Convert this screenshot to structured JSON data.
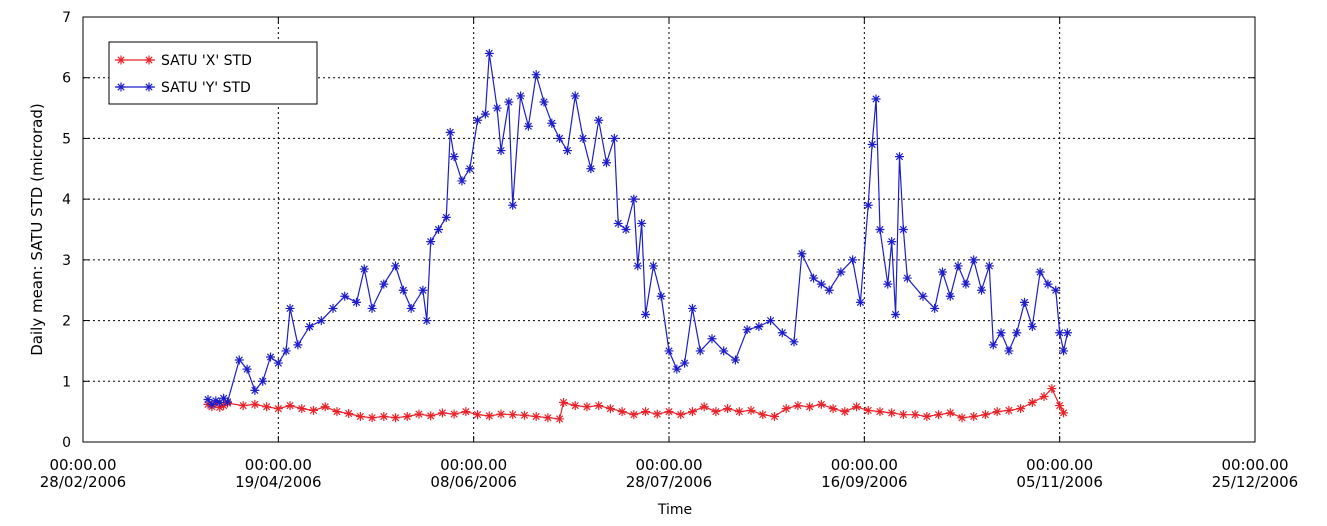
{
  "chart_data": {
    "type": "line",
    "title": "",
    "xlabel": "Time",
    "ylabel": "Daily mean: SATU STD (microrad)",
    "ylim": [
      0,
      7
    ],
    "xlim": [
      "2006-02-28",
      "2006-12-25"
    ],
    "yticks": [
      "0",
      "1",
      "2",
      "3",
      "4",
      "5",
      "6",
      "7"
    ],
    "xticks": [
      {
        "date": "2006-02-28",
        "time": "00:00.00",
        "label": "28/02/2006"
      },
      {
        "date": "2006-04-19",
        "time": "00:00.00",
        "label": "19/04/2006"
      },
      {
        "date": "2006-06-08",
        "time": "00:00.00",
        "label": "08/06/2006"
      },
      {
        "date": "2006-07-28",
        "time": "00:00.00",
        "label": "28/07/2006"
      },
      {
        "date": "2006-09-16",
        "time": "00:00.00",
        "label": "16/09/2006"
      },
      {
        "date": "2006-11-05",
        "time": "00:00.00",
        "label": "05/11/2006"
      },
      {
        "date": "2006-12-25",
        "time": "00:00.00",
        "label": "25/12/2006"
      }
    ],
    "grid": true,
    "legend_position": "top-left",
    "series": [
      {
        "name": "SATU 'X' STD",
        "color": "#e8232a",
        "marker": "asterisk",
        "points": [
          [
            "2006-04-01",
            0.62
          ],
          [
            "2006-04-02",
            0.58
          ],
          [
            "2006-04-03",
            0.63
          ],
          [
            "2006-04-04",
            0.57
          ],
          [
            "2006-04-05",
            0.6
          ],
          [
            "2006-04-06",
            0.64
          ],
          [
            "2006-04-10",
            0.6
          ],
          [
            "2006-04-13",
            0.62
          ],
          [
            "2006-04-16",
            0.58
          ],
          [
            "2006-04-19",
            0.55
          ],
          [
            "2006-04-22",
            0.6
          ],
          [
            "2006-04-25",
            0.55
          ],
          [
            "2006-04-28",
            0.52
          ],
          [
            "2006-05-01",
            0.58
          ],
          [
            "2006-05-04",
            0.5
          ],
          [
            "2006-05-07",
            0.47
          ],
          [
            "2006-05-10",
            0.42
          ],
          [
            "2006-05-13",
            0.4
          ],
          [
            "2006-05-16",
            0.42
          ],
          [
            "2006-05-19",
            0.4
          ],
          [
            "2006-05-22",
            0.42
          ],
          [
            "2006-05-25",
            0.46
          ],
          [
            "2006-05-28",
            0.43
          ],
          [
            "2006-05-31",
            0.48
          ],
          [
            "2006-06-03",
            0.46
          ],
          [
            "2006-06-06",
            0.5
          ],
          [
            "2006-06-09",
            0.45
          ],
          [
            "2006-06-12",
            0.43
          ],
          [
            "2006-06-15",
            0.46
          ],
          [
            "2006-06-18",
            0.45
          ],
          [
            "2006-06-21",
            0.44
          ],
          [
            "2006-06-24",
            0.42
          ],
          [
            "2006-06-27",
            0.4
          ],
          [
            "2006-06-30",
            0.38
          ],
          [
            "2006-07-01",
            0.65
          ],
          [
            "2006-07-04",
            0.6
          ],
          [
            "2006-07-07",
            0.58
          ],
          [
            "2006-07-10",
            0.6
          ],
          [
            "2006-07-13",
            0.55
          ],
          [
            "2006-07-16",
            0.5
          ],
          [
            "2006-07-19",
            0.45
          ],
          [
            "2006-07-22",
            0.5
          ],
          [
            "2006-07-25",
            0.46
          ],
          [
            "2006-07-28",
            0.5
          ],
          [
            "2006-07-31",
            0.45
          ],
          [
            "2006-08-03",
            0.5
          ],
          [
            "2006-08-06",
            0.58
          ],
          [
            "2006-08-09",
            0.5
          ],
          [
            "2006-08-12",
            0.55
          ],
          [
            "2006-08-15",
            0.5
          ],
          [
            "2006-08-18",
            0.52
          ],
          [
            "2006-08-21",
            0.45
          ],
          [
            "2006-08-24",
            0.42
          ],
          [
            "2006-08-27",
            0.55
          ],
          [
            "2006-08-30",
            0.6
          ],
          [
            "2006-09-02",
            0.58
          ],
          [
            "2006-09-05",
            0.62
          ],
          [
            "2006-09-08",
            0.55
          ],
          [
            "2006-09-11",
            0.5
          ],
          [
            "2006-09-14",
            0.58
          ],
          [
            "2006-09-17",
            0.52
          ],
          [
            "2006-09-20",
            0.5
          ],
          [
            "2006-09-23",
            0.48
          ],
          [
            "2006-09-26",
            0.45
          ],
          [
            "2006-09-29",
            0.45
          ],
          [
            "2006-10-02",
            0.42
          ],
          [
            "2006-10-05",
            0.45
          ],
          [
            "2006-10-08",
            0.48
          ],
          [
            "2006-10-11",
            0.4
          ],
          [
            "2006-10-14",
            0.42
          ],
          [
            "2006-10-17",
            0.45
          ],
          [
            "2006-10-20",
            0.5
          ],
          [
            "2006-10-23",
            0.52
          ],
          [
            "2006-10-26",
            0.55
          ],
          [
            "2006-10-29",
            0.65
          ],
          [
            "2006-11-01",
            0.75
          ],
          [
            "2006-11-03",
            0.88
          ],
          [
            "2006-11-05",
            0.6
          ],
          [
            "2006-11-06",
            0.48
          ]
        ]
      },
      {
        "name": "SATU 'Y' STD",
        "color": "#1e1ec8",
        "marker": "asterisk",
        "points": [
          [
            "2006-04-01",
            0.7
          ],
          [
            "2006-04-02",
            0.62
          ],
          [
            "2006-04-03",
            0.68
          ],
          [
            "2006-04-04",
            0.65
          ],
          [
            "2006-04-05",
            0.72
          ],
          [
            "2006-04-06",
            0.66
          ],
          [
            "2006-04-09",
            1.35
          ],
          [
            "2006-04-11",
            1.2
          ],
          [
            "2006-04-13",
            0.85
          ],
          [
            "2006-04-15",
            1.0
          ],
          [
            "2006-04-17",
            1.4
          ],
          [
            "2006-04-19",
            1.3
          ],
          [
            "2006-04-21",
            1.5
          ],
          [
            "2006-04-22",
            2.2
          ],
          [
            "2006-04-24",
            1.6
          ],
          [
            "2006-04-27",
            1.9
          ],
          [
            "2006-04-30",
            2.0
          ],
          [
            "2006-05-03",
            2.2
          ],
          [
            "2006-05-06",
            2.4
          ],
          [
            "2006-05-09",
            2.3
          ],
          [
            "2006-05-11",
            2.85
          ],
          [
            "2006-05-13",
            2.2
          ],
          [
            "2006-05-16",
            2.6
          ],
          [
            "2006-05-19",
            2.9
          ],
          [
            "2006-05-21",
            2.5
          ],
          [
            "2006-05-23",
            2.2
          ],
          [
            "2006-05-26",
            2.5
          ],
          [
            "2006-05-27",
            2.0
          ],
          [
            "2006-05-28",
            3.3
          ],
          [
            "2006-05-30",
            3.5
          ],
          [
            "2006-06-01",
            3.7
          ],
          [
            "2006-06-02",
            5.1
          ],
          [
            "2006-06-03",
            4.7
          ],
          [
            "2006-06-05",
            4.3
          ],
          [
            "2006-06-07",
            4.5
          ],
          [
            "2006-06-09",
            5.3
          ],
          [
            "2006-06-11",
            5.4
          ],
          [
            "2006-06-12",
            6.4
          ],
          [
            "2006-06-14",
            5.5
          ],
          [
            "2006-06-15",
            4.8
          ],
          [
            "2006-06-17",
            5.6
          ],
          [
            "2006-06-18",
            3.9
          ],
          [
            "2006-06-20",
            5.7
          ],
          [
            "2006-06-22",
            5.2
          ],
          [
            "2006-06-24",
            6.05
          ],
          [
            "2006-06-26",
            5.6
          ],
          [
            "2006-06-28",
            5.25
          ],
          [
            "2006-06-30",
            5.0
          ],
          [
            "2006-07-02",
            4.8
          ],
          [
            "2006-07-04",
            5.7
          ],
          [
            "2006-07-06",
            5.0
          ],
          [
            "2006-07-08",
            4.5
          ],
          [
            "2006-07-10",
            5.3
          ],
          [
            "2006-07-12",
            4.6
          ],
          [
            "2006-07-14",
            5.0
          ],
          [
            "2006-07-15",
            3.6
          ],
          [
            "2006-07-17",
            3.5
          ],
          [
            "2006-07-19",
            4.0
          ],
          [
            "2006-07-20",
            2.9
          ],
          [
            "2006-07-21",
            3.6
          ],
          [
            "2006-07-22",
            2.1
          ],
          [
            "2006-07-24",
            2.9
          ],
          [
            "2006-07-26",
            2.4
          ],
          [
            "2006-07-28",
            1.5
          ],
          [
            "2006-07-30",
            1.2
          ],
          [
            "2006-08-01",
            1.3
          ],
          [
            "2006-08-03",
            2.2
          ],
          [
            "2006-08-05",
            1.5
          ],
          [
            "2006-08-08",
            1.7
          ],
          [
            "2006-08-11",
            1.5
          ],
          [
            "2006-08-14",
            1.35
          ],
          [
            "2006-08-17",
            1.85
          ],
          [
            "2006-08-20",
            1.9
          ],
          [
            "2006-08-23",
            2.0
          ],
          [
            "2006-08-26",
            1.8
          ],
          [
            "2006-08-29",
            1.65
          ],
          [
            "2006-08-31",
            3.1
          ],
          [
            "2006-09-03",
            2.7
          ],
          [
            "2006-09-05",
            2.6
          ],
          [
            "2006-09-07",
            2.5
          ],
          [
            "2006-09-10",
            2.8
          ],
          [
            "2006-09-13",
            3.0
          ],
          [
            "2006-09-15",
            2.3
          ],
          [
            "2006-09-17",
            3.9
          ],
          [
            "2006-09-18",
            4.9
          ],
          [
            "2006-09-19",
            5.65
          ],
          [
            "2006-09-20",
            3.5
          ],
          [
            "2006-09-22",
            2.6
          ],
          [
            "2006-09-23",
            3.3
          ],
          [
            "2006-09-24",
            2.1
          ],
          [
            "2006-09-25",
            4.7
          ],
          [
            "2006-09-26",
            3.5
          ],
          [
            "2006-09-27",
            2.7
          ],
          [
            "2006-10-01",
            2.4
          ],
          [
            "2006-10-04",
            2.2
          ],
          [
            "2006-10-06",
            2.8
          ],
          [
            "2006-10-08",
            2.4
          ],
          [
            "2006-10-10",
            2.9
          ],
          [
            "2006-10-12",
            2.6
          ],
          [
            "2006-10-14",
            3.0
          ],
          [
            "2006-10-16",
            2.5
          ],
          [
            "2006-10-18",
            2.9
          ],
          [
            "2006-10-19",
            1.6
          ],
          [
            "2006-10-21",
            1.8
          ],
          [
            "2006-10-23",
            1.5
          ],
          [
            "2006-10-25",
            1.8
          ],
          [
            "2006-10-27",
            2.3
          ],
          [
            "2006-10-29",
            1.9
          ],
          [
            "2006-10-31",
            2.8
          ],
          [
            "2006-11-02",
            2.6
          ],
          [
            "2006-11-04",
            2.5
          ],
          [
            "2006-11-05",
            1.8
          ],
          [
            "2006-11-06",
            1.5
          ],
          [
            "2006-11-07",
            1.8
          ]
        ]
      }
    ]
  }
}
